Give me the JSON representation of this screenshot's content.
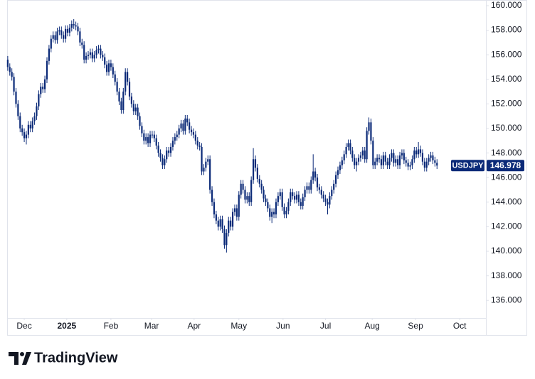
{
  "chart_data": {
    "type": "candlestick",
    "name": "USDJPY",
    "color": "#0b2a78",
    "ylim": [
      134.57,
      160.46
    ],
    "xlim": [
      -0.3,
      231.7
    ],
    "yticks": [
      {
        "value": 136,
        "label": "136.000"
      },
      {
        "value": 138,
        "label": "138.000"
      },
      {
        "value": 140,
        "label": "140.000"
      },
      {
        "value": 142,
        "label": "142.000"
      },
      {
        "value": 144,
        "label": "144.000"
      },
      {
        "value": 146,
        "label": "146.000"
      },
      {
        "value": 148,
        "label": "148.000"
      },
      {
        "value": 150,
        "label": "150.000"
      },
      {
        "value": 152,
        "label": "152.000"
      },
      {
        "value": 154,
        "label": "154.000"
      },
      {
        "value": 156,
        "label": "156.000"
      },
      {
        "value": 158,
        "label": "158.000"
      },
      {
        "value": 160,
        "label": "160.000"
      }
    ],
    "xticks": [
      {
        "value": 8,
        "label": "Dec"
      },
      {
        "value": 28.6,
        "label": "2025"
      },
      {
        "value": 50,
        "label": "Feb"
      },
      {
        "value": 69.7,
        "label": "Mar"
      },
      {
        "value": 90.3,
        "label": "Apr"
      },
      {
        "value": 112,
        "label": "May"
      },
      {
        "value": 133.4,
        "label": "Jun"
      },
      {
        "value": 154,
        "label": "Jul"
      },
      {
        "value": 176.6,
        "label": "Aug"
      },
      {
        "value": 197.6,
        "label": "Sep"
      },
      {
        "value": 219,
        "label": "Oct"
      }
    ],
    "x": [
      0,
      1,
      2,
      3,
      4,
      5,
      6,
      7,
      8,
      9,
      10,
      11,
      12,
      13,
      14,
      15,
      16,
      17,
      18,
      19,
      20,
      21,
      22,
      23,
      24,
      25,
      26,
      27,
      28,
      29,
      30,
      31,
      32,
      33,
      34,
      35,
      36,
      37,
      38,
      39,
      40,
      41,
      42,
      43,
      44,
      45,
      46,
      47,
      48,
      49,
      50,
      51,
      52,
      53,
      54,
      55,
      56,
      57,
      58,
      59,
      60,
      61,
      62,
      63,
      64,
      65,
      66,
      67,
      68,
      69,
      70,
      71,
      72,
      73,
      74,
      75,
      76,
      77,
      78,
      79,
      80,
      81,
      82,
      83,
      84,
      85,
      86,
      87,
      88,
      89,
      90,
      91,
      92,
      93,
      94,
      95,
      96,
      97,
      98,
      99,
      100,
      101,
      102,
      103,
      104,
      105,
      106,
      107,
      108,
      109,
      110,
      111,
      112,
      113,
      114,
      115,
      116,
      117,
      118,
      119,
      120,
      121,
      122,
      123,
      124,
      125,
      126,
      127,
      128,
      129,
      130,
      131,
      132,
      133,
      134,
      135,
      136,
      137,
      138,
      139,
      140,
      141,
      142,
      143,
      144,
      145,
      146,
      147,
      148,
      149,
      150,
      151,
      152,
      153,
      154,
      155,
      156,
      157,
      158,
      159,
      160,
      161,
      162,
      163,
      164,
      165,
      166,
      167,
      168,
      169,
      170,
      171,
      172,
      173,
      174,
      175,
      176,
      177,
      178,
      179,
      180,
      181,
      182,
      183,
      184,
      185,
      186,
      187,
      188,
      189,
      190,
      191,
      192,
      193,
      194,
      195,
      196,
      197,
      198,
      199,
      200,
      201,
      202,
      203,
      204,
      205,
      206,
      207,
      208
    ],
    "open": [
      155.6,
      155,
      154.6,
      154.2,
      153.0,
      152.0,
      151.0,
      150.0,
      149.7,
      149.2,
      149.5,
      150.3,
      150.0,
      150.6,
      151.0,
      151.8,
      152.8,
      153.4,
      153.2,
      154.0,
      155.5,
      156.5,
      157.3,
      157.6,
      157.2,
      157.9,
      158.0,
      157.6,
      157.3,
      158.1,
      157.8,
      158.2,
      158.5,
      158.4,
      158.3,
      157.9,
      157.0,
      156.8,
      155.6,
      155.9,
      156.0,
      156.2,
      155.7,
      156.0,
      156.4,
      156.5,
      156.0,
      155.8,
      155.2,
      154.6,
      155.3,
      155.0,
      154.4,
      153.8,
      153.0,
      152.2,
      151.5,
      153.0,
      154.6,
      153.8,
      152.6,
      152.0,
      151.4,
      151.7,
      151.0,
      150.2,
      149.6,
      149.0,
      149.3,
      148.8,
      149.5,
      149.5,
      149.2,
      148.6,
      148.0,
      147.6,
      147.0,
      147.5,
      148.2,
      148.0,
      148.5,
      149.0,
      149.3,
      149.5,
      150.0,
      150.4,
      149.8,
      150.8,
      150.5,
      149.9,
      149.7,
      149.5,
      149.0,
      148.6,
      148.5,
      146.5,
      146.8,
      147.3,
      147.5,
      145.0,
      144.0,
      143.0,
      142.5,
      142.0,
      142.6,
      141.8,
      140.5,
      141.5,
      142.5,
      142.0,
      143.2,
      143.5,
      142.8,
      144.6,
      145.5,
      145.0,
      144.2,
      144.5,
      144.0,
      145.8,
      147.5,
      146.8,
      145.9,
      145.5,
      145.0,
      144.3,
      144.0,
      143.5,
      142.8,
      143.2,
      143.0,
      144.0,
      144.5,
      144.8,
      143.6,
      143.0,
      143.3,
      144.0,
      144.8,
      144.5,
      144.2,
      144.6,
      144.0,
      143.7,
      144.4,
      145.0,
      145.3,
      145.0,
      145.8,
      146.5,
      146.0,
      145.2,
      145.0,
      144.6,
      144.3,
      144.0,
      143.8,
      144.5,
      145.0,
      145.5,
      146.2,
      146.6,
      147.0,
      147.4,
      147.9,
      148.5,
      148.8,
      148.2,
      147.6,
      147.0,
      147.3,
      147.6,
      147.8,
      148.2,
      147.5,
      149.8,
      150.5,
      149.0,
      147.0,
      147.3,
      147.6,
      147.5,
      147.0,
      147.8,
      147.3,
      147.0,
      147.6,
      148.0,
      147.2,
      147.5,
      147.0,
      147.8,
      148.0,
      147.4,
      147.2,
      146.9,
      147.0,
      147.5,
      148.2,
      147.9,
      148.3,
      148.0,
      147.3,
      146.8,
      147.3,
      147.6,
      147.8,
      147.4,
      147.2
    ],
    "high": [
      155.9,
      155.3,
      154.9,
      154.5,
      153.3,
      152.3,
      151.3,
      150.3,
      150.0,
      149.8,
      150.6,
      150.6,
      150.9,
      151.3,
      152.1,
      153.1,
      153.7,
      153.7,
      154.3,
      155.8,
      156.8,
      157.6,
      157.9,
      157.9,
      158.2,
      158.3,
      158.3,
      157.9,
      158.4,
      158.4,
      158.5,
      158.8,
      158.9,
      158.7,
      158.6,
      158.2,
      157.3,
      157.1,
      156.2,
      156.3,
      156.5,
      156.5,
      156.3,
      156.7,
      156.8,
      156.8,
      156.3,
      156.1,
      155.5,
      155.6,
      155.6,
      155.3,
      154.7,
      154.1,
      153.3,
      152.5,
      153.3,
      154.9,
      154.9,
      154.1,
      152.9,
      152.3,
      152.0,
      152.0,
      151.3,
      150.5,
      149.9,
      149.6,
      149.6,
      149.8,
      149.8,
      149.8,
      149.5,
      148.9,
      148.3,
      147.9,
      147.8,
      148.5,
      148.5,
      148.8,
      149.3,
      149.6,
      149.8,
      150.3,
      150.7,
      150.7,
      151.1,
      151.1,
      150.8,
      150.2,
      150.0,
      149.8,
      149.3,
      148.9,
      148.8,
      147.1,
      147.6,
      147.8,
      147.8,
      145.3,
      144.3,
      143.3,
      142.8,
      142.9,
      142.9,
      142.1,
      141.8,
      142.8,
      142.8,
      143.5,
      143.8,
      143.8,
      144.9,
      145.8,
      145.8,
      145.3,
      144.8,
      144.8,
      146.1,
      148.4,
      147.8,
      147.1,
      146.2,
      145.8,
      145.3,
      144.6,
      144.3,
      143.8,
      143.5,
      143.5,
      144.3,
      144.8,
      145.1,
      145.1,
      143.9,
      143.6,
      144.3,
      145.1,
      145.1,
      144.8,
      144.9,
      144.9,
      144.3,
      144.7,
      145.3,
      145.6,
      145.6,
      146.1,
      147.9,
      146.8,
      146.3,
      145.5,
      145.3,
      144.9,
      144.6,
      144.3,
      144.8,
      145.3,
      145.8,
      146.5,
      146.9,
      147.3,
      147.7,
      148.2,
      148.8,
      149.1,
      149.1,
      148.5,
      147.9,
      147.6,
      147.9,
      148.1,
      148.5,
      148.5,
      150.1,
      150.9,
      150.8,
      149.3,
      147.6,
      147.9,
      147.9,
      147.8,
      148.1,
      148.1,
      147.6,
      147.9,
      148.3,
      148.3,
      147.8,
      147.8,
      148.1,
      148.3,
      148.3,
      147.7,
      147.5,
      147.3,
      147.8,
      148.5,
      148.5,
      148.9,
      148.6,
      148.3,
      147.6,
      147.6,
      147.9,
      148.1,
      148.1,
      147.7,
      147.5
    ],
    "low": [
      154.7,
      154.3,
      153.9,
      152.7,
      151.7,
      150.7,
      149.7,
      149.4,
      148.9,
      148.7,
      149.2,
      149.7,
      149.7,
      150.3,
      150.7,
      151.5,
      152.5,
      152.9,
      152.9,
      153.7,
      155.2,
      156.2,
      157.0,
      156.9,
      156.9,
      157.6,
      157.3,
      157.0,
      157.0,
      157.5,
      157.5,
      157.9,
      158.1,
      158.0,
      157.6,
      156.7,
      156.5,
      155.3,
      155.3,
      155.6,
      155.7,
      155.4,
      155.4,
      155.7,
      156.1,
      155.7,
      155.5,
      154.9,
      154.3,
      154.3,
      154.7,
      154.1,
      153.5,
      152.7,
      151.9,
      151.2,
      151.2,
      152.7,
      153.5,
      152.3,
      151.7,
      151.1,
      151.1,
      150.7,
      149.9,
      149.3,
      148.7,
      148.7,
      148.5,
      148.5,
      149.2,
      148.9,
      148.3,
      147.7,
      147.3,
      146.7,
      146.7,
      147.2,
      147.7,
      147.7,
      148.2,
      148.7,
      149.0,
      149.2,
      149.7,
      149.5,
      149.5,
      150.2,
      149.6,
      149.4,
      149.2,
      148.7,
      148.3,
      148.2,
      146.2,
      146.2,
      146.5,
      147.0,
      144.7,
      143.7,
      142.7,
      142.2,
      141.7,
      141.7,
      141.5,
      140.2,
      139.9,
      141.2,
      141.7,
      141.7,
      142.9,
      142.5,
      142.5,
      144.3,
      144.7,
      143.9,
      143.9,
      143.7,
      143.7,
      145.5,
      146.5,
      145.6,
      145.2,
      144.7,
      144.0,
      143.7,
      143.2,
      142.5,
      142.3,
      142.7,
      142.7,
      143.7,
      144.2,
      143.3,
      142.7,
      142.7,
      143.0,
      143.7,
      144.2,
      143.9,
      143.9,
      143.7,
      143.4,
      143.4,
      144.1,
      144.7,
      144.7,
      144.7,
      145.5,
      145.7,
      144.9,
      144.7,
      144.3,
      144.0,
      143.7,
      143.0,
      143.5,
      144.2,
      144.7,
      145.2,
      145.9,
      146.3,
      146.7,
      147.1,
      147.6,
      148.2,
      147.9,
      147.3,
      146.7,
      146.5,
      147.0,
      147.3,
      147.5,
      147.2,
      147.2,
      149.5,
      148.7,
      146.7,
      146.7,
      147.0,
      147.2,
      146.7,
      146.7,
      147.0,
      146.7,
      146.7,
      147.3,
      146.9,
      146.9,
      146.7,
      146.7,
      147.5,
      147.1,
      146.9,
      146.6,
      146.6,
      146.7,
      147.2,
      147.6,
      147.6,
      147.7,
      147.0,
      146.5,
      146.5,
      147.0,
      147.3,
      147.1,
      146.9,
      146.7
    ],
    "close": [
      155,
      154.6,
      154.2,
      153.0,
      152.0,
      151.0,
      150.0,
      149.7,
      149.2,
      149.5,
      150.3,
      150.0,
      150.6,
      151.0,
      151.8,
      152.8,
      153.4,
      153.2,
      154.0,
      155.5,
      156.5,
      157.3,
      157.6,
      157.2,
      157.9,
      158.0,
      157.6,
      157.3,
      158.1,
      157.8,
      158.2,
      158.5,
      158.4,
      158.3,
      157.9,
      157.0,
      156.8,
      155.6,
      155.9,
      156.0,
      156.2,
      155.7,
      156.0,
      156.4,
      156.5,
      156.0,
      155.8,
      155.2,
      154.6,
      155.3,
      155.0,
      154.4,
      153.8,
      153.0,
      152.2,
      151.5,
      153.0,
      154.6,
      153.8,
      152.6,
      152.0,
      151.4,
      151.7,
      151.0,
      150.2,
      149.6,
      149.0,
      149.3,
      148.8,
      149.5,
      149.5,
      149.2,
      148.6,
      148.0,
      147.6,
      147.0,
      147.5,
      148.2,
      148.0,
      148.5,
      149.0,
      149.3,
      149.5,
      150.0,
      150.4,
      149.8,
      150.8,
      150.5,
      149.9,
      149.7,
      149.5,
      149.0,
      148.6,
      148.5,
      146.5,
      146.8,
      147.3,
      147.5,
      145.0,
      144.0,
      143.0,
      142.5,
      142.0,
      142.6,
      141.8,
      140.5,
      141.5,
      142.5,
      142.0,
      143.2,
      143.5,
      142.8,
      144.6,
      145.5,
      145.0,
      144.2,
      144.5,
      144.0,
      145.8,
      147.5,
      146.8,
      145.9,
      145.5,
      145.0,
      144.3,
      144.0,
      143.5,
      142.8,
      143.2,
      143.0,
      144.0,
      144.5,
      144.8,
      143.6,
      143.0,
      143.3,
      144.0,
      144.8,
      144.5,
      144.2,
      144.6,
      144.0,
      143.7,
      144.4,
      145.0,
      145.3,
      145.0,
      145.8,
      146.5,
      146.0,
      145.2,
      145.0,
      144.6,
      144.3,
      144.0,
      143.8,
      144.5,
      145.0,
      145.5,
      146.2,
      146.6,
      147.0,
      147.4,
      147.9,
      148.5,
      148.8,
      148.2,
      147.6,
      147.0,
      147.3,
      147.6,
      147.8,
      148.2,
      147.5,
      149.8,
      150.5,
      149.0,
      147.0,
      147.3,
      147.6,
      147.5,
      147.0,
      147.8,
      147.3,
      147.0,
      147.6,
      148.0,
      147.2,
      147.5,
      147.0,
      147.8,
      148.0,
      147.4,
      147.2,
      146.9,
      147.0,
      147.5,
      148.2,
      147.9,
      148.3,
      148.0,
      147.3,
      146.8,
      147.3,
      147.6,
      147.8,
      147.4,
      147.2,
      146.978
    ]
  },
  "branding": "TradingView"
}
